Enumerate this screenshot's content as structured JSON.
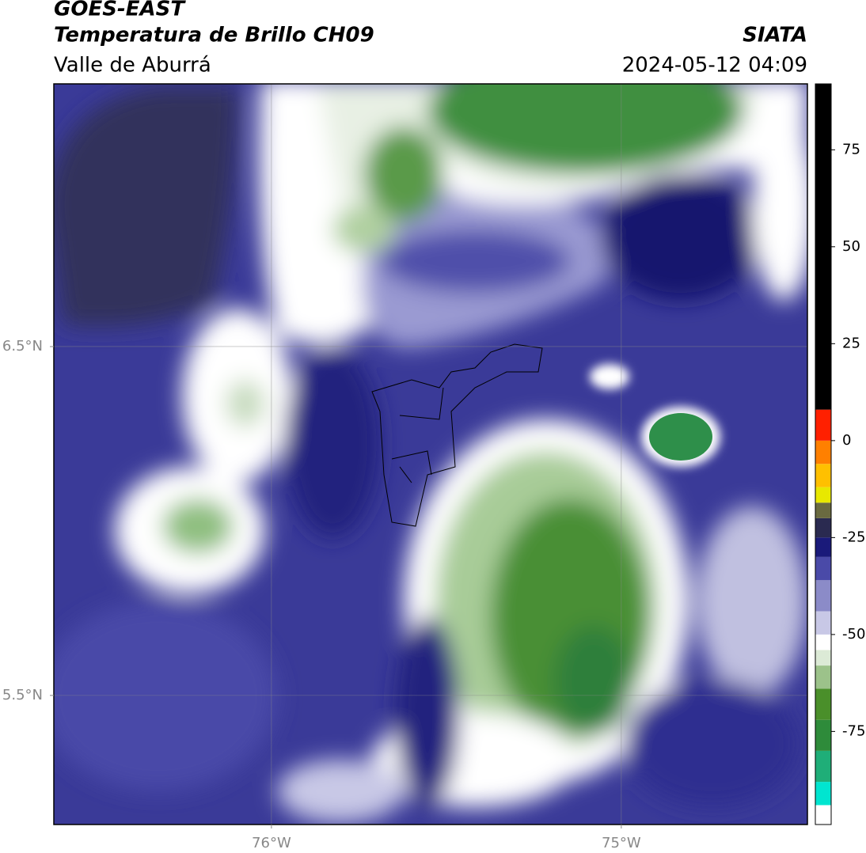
{
  "chart_data": {
    "type": "map",
    "title": "GOES-EAST",
    "subtitle": "Temperatura de Brillo CH09",
    "region": "Valle de Aburrá",
    "source": "SIATA",
    "timestamp": "2024-05-12 04:09",
    "xlim": [
      -76.622,
      -74.468
    ],
    "ylim": [
      5.13,
      7.253
    ],
    "xticks": [
      {
        "value": -76,
        "label": "76°W"
      },
      {
        "value": -75,
        "label": "75°W"
      }
    ],
    "yticks": [
      {
        "value": 6.5,
        "label": "6.5°N"
      },
      {
        "value": 5.5,
        "label": "5.5°N"
      }
    ],
    "grid": true,
    "colorbar": {
      "lim": [
        -99,
        92
      ],
      "ticks": [
        75,
        50,
        25,
        0,
        -25,
        -50,
        -75
      ],
      "bands": [
        {
          "from": -99,
          "to": -94,
          "color": "#ffffff"
        },
        {
          "from": -94,
          "to": -88,
          "color": "#00e5d0"
        },
        {
          "from": -88,
          "to": -80,
          "color": "#1fae78"
        },
        {
          "from": -80,
          "to": -72,
          "color": "#2e8b3a"
        },
        {
          "from": -72,
          "to": -64,
          "color": "#4a8f2a"
        },
        {
          "from": -64,
          "to": -58,
          "color": "#9cc28a"
        },
        {
          "from": -58,
          "to": -54,
          "color": "#dcead6"
        },
        {
          "from": -54,
          "to": -50,
          "color": "#ffffff"
        },
        {
          "from": -50,
          "to": -44,
          "color": "#c8c8e6"
        },
        {
          "from": -44,
          "to": -36,
          "color": "#8b8bc8"
        },
        {
          "from": -36,
          "to": -30,
          "color": "#4a4aa8"
        },
        {
          "from": -30,
          "to": -25,
          "color": "#1a1a7a"
        },
        {
          "from": -25,
          "to": -20,
          "color": "#2a2a50"
        },
        {
          "from": -20,
          "to": -16,
          "color": "#6a6a40"
        },
        {
          "from": -16,
          "to": -12,
          "color": "#e8e800"
        },
        {
          "from": -12,
          "to": -6,
          "color": "#ffc000"
        },
        {
          "from": -6,
          "to": 0,
          "color": "#ff8000"
        },
        {
          "from": 0,
          "to": 8,
          "color": "#ff2000"
        },
        {
          "from": 8,
          "to": 92,
          "color": "#000000"
        }
      ]
    }
  }
}
